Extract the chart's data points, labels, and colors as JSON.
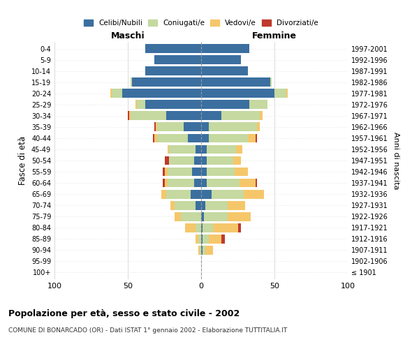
{
  "age_groups": [
    "100+",
    "95-99",
    "90-94",
    "85-89",
    "80-84",
    "75-79",
    "70-74",
    "65-69",
    "60-64",
    "55-59",
    "50-54",
    "45-49",
    "40-44",
    "35-39",
    "30-34",
    "25-29",
    "20-24",
    "15-19",
    "10-14",
    "5-9",
    "0-4"
  ],
  "birth_years": [
    "≤ 1901",
    "1902-1906",
    "1907-1911",
    "1912-1916",
    "1917-1921",
    "1922-1926",
    "1927-1931",
    "1932-1936",
    "1937-1941",
    "1942-1946",
    "1947-1951",
    "1952-1956",
    "1957-1961",
    "1962-1966",
    "1967-1971",
    "1972-1976",
    "1977-1981",
    "1982-1986",
    "1987-1991",
    "1992-1996",
    "1997-2001"
  ],
  "maschi": {
    "celibi": [
      0,
      0,
      0,
      0,
      0,
      0,
      4,
      7,
      5,
      6,
      5,
      4,
      9,
      12,
      24,
      38,
      54,
      47,
      38,
      32,
      38
    ],
    "coniugati": [
      0,
      0,
      1,
      2,
      4,
      14,
      14,
      17,
      18,
      17,
      17,
      18,
      21,
      18,
      24,
      6,
      7,
      1,
      0,
      0,
      0
    ],
    "vedovi": [
      0,
      0,
      1,
      2,
      7,
      4,
      3,
      3,
      2,
      2,
      0,
      1,
      2,
      1,
      1,
      1,
      1,
      0,
      0,
      0,
      0
    ],
    "divorziati": [
      0,
      0,
      0,
      0,
      0,
      0,
      0,
      0,
      1,
      1,
      3,
      0,
      1,
      1,
      1,
      0,
      0,
      0,
      0,
      0,
      0
    ]
  },
  "femmine": {
    "nubili": [
      0,
      0,
      1,
      1,
      1,
      2,
      3,
      7,
      4,
      4,
      4,
      4,
      5,
      5,
      14,
      33,
      50,
      47,
      32,
      27,
      33
    ],
    "coniugate": [
      0,
      0,
      2,
      4,
      7,
      16,
      15,
      22,
      22,
      19,
      18,
      20,
      27,
      33,
      26,
      12,
      8,
      1,
      0,
      0,
      0
    ],
    "vedove": [
      0,
      0,
      5,
      9,
      17,
      16,
      12,
      14,
      11,
      9,
      5,
      4,
      5,
      2,
      2,
      0,
      1,
      0,
      0,
      0,
      0
    ],
    "divorziate": [
      0,
      0,
      0,
      2,
      2,
      0,
      0,
      0,
      1,
      0,
      0,
      0,
      1,
      0,
      0,
      0,
      0,
      0,
      0,
      0,
      0
    ]
  },
  "colors": {
    "celibi": "#3b6fa0",
    "coniugati": "#c5d9a0",
    "vedovi": "#f5c76a",
    "divorziati": "#c0392b"
  },
  "xlim": 100,
  "title": "Popolazione per età, sesso e stato civile - 2002",
  "subtitle": "COMUNE DI BONARCADO (OR) - Dati ISTAT 1° gennaio 2002 - Elaborazione TUTTITALIA.IT",
  "ylabel_left": "Fasce di età",
  "ylabel_right": "Anni di nascita",
  "xlabel_left": "Maschi",
  "xlabel_right": "Femmine"
}
